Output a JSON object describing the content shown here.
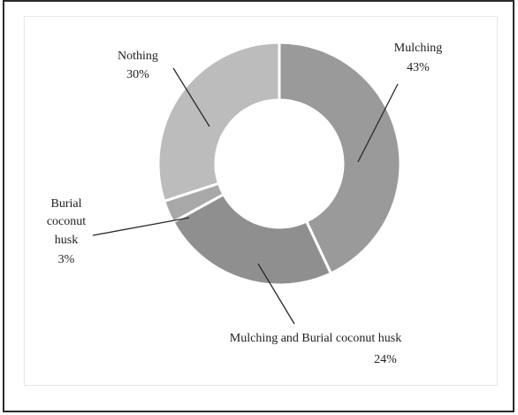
{
  "chart_data": {
    "type": "pie",
    "donut": true,
    "categories": [
      "Mulching",
      "Mulching and Burial coconut husk",
      "Burial coconut husk",
      "Nothing"
    ],
    "values": [
      43,
      24,
      3,
      30
    ],
    "value_labels": [
      "43%",
      "24%",
      "3%",
      "30%"
    ],
    "label_lines": [
      [
        "Mulching"
      ],
      [
        "Mulching and Burial coconut husk"
      ],
      [
        "Burial",
        "coconut",
        "husk"
      ],
      [
        "Nothing"
      ]
    ],
    "colors": [
      "#9a9a9a",
      "#8f8f8f",
      "#a8a8a8",
      "#bcbcbc"
    ],
    "title": "",
    "legend": "none"
  }
}
